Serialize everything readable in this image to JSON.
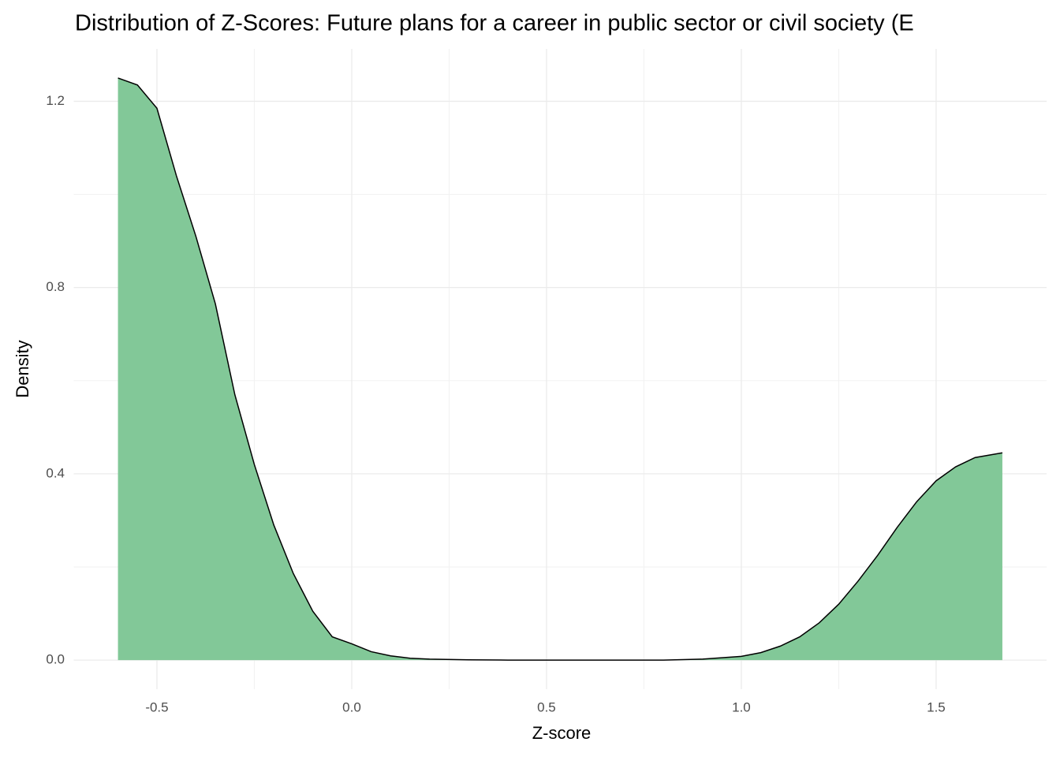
{
  "chart_data": {
    "type": "area",
    "title": "Distribution of Z-Scores: Future plans for a career in public sector or civil society (E",
    "x_label": "Z-score",
    "y_label": "Density",
    "x": [
      -0.6,
      -0.55,
      -0.5,
      -0.45,
      -0.4,
      -0.35,
      -0.3,
      -0.25,
      -0.2,
      -0.15,
      -0.1,
      -0.05,
      0.0,
      0.05,
      0.1,
      0.15,
      0.2,
      0.3,
      0.4,
      0.5,
      0.6,
      0.7,
      0.8,
      0.9,
      1.0,
      1.05,
      1.1,
      1.15,
      1.2,
      1.25,
      1.3,
      1.35,
      1.4,
      1.45,
      1.5,
      1.55,
      1.6,
      1.67
    ],
    "values": [
      1.25,
      1.235,
      1.185,
      1.04,
      0.91,
      0.765,
      0.57,
      0.42,
      0.29,
      0.186,
      0.105,
      0.05,
      0.035,
      0.018,
      0.009,
      0.004,
      0.002,
      0.0005,
      0,
      0,
      0,
      0,
      0,
      0.002,
      0.008,
      0.016,
      0.03,
      0.05,
      0.08,
      0.12,
      0.17,
      0.225,
      0.285,
      0.34,
      0.385,
      0.415,
      0.435,
      0.445
    ],
    "color": "#82c898",
    "line_color": "#000000",
    "xlim": [
      -0.7135,
      1.7835
    ],
    "xticks": [
      -0.5,
      {
        "value": 0,
        "label": "0.0"
      },
      0.5,
      {
        "value": 1,
        "label": "1.0"
      },
      1.5
    ],
    "ylim": [
      -0.0625,
      1.3125
    ],
    "yticks": [
      {
        "value": 0,
        "label": "0.0"
      },
      0.4,
      0.8,
      1.2
    ],
    "grid": true
  }
}
